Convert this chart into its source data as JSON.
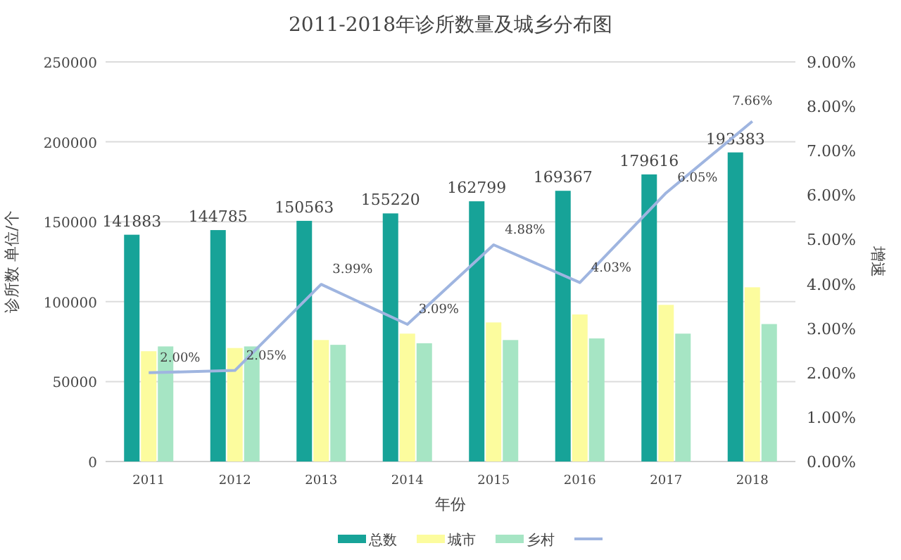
{
  "chart_data": {
    "type": "bar",
    "title": "2011-2018年诊所数量及城乡分布图",
    "xlabel": "年份",
    "ylabel": "诊所数 单位/个",
    "y2label": "增速",
    "categories": [
      "2011",
      "2012",
      "2013",
      "2014",
      "2015",
      "2016",
      "2017",
      "2018"
    ],
    "series": [
      {
        "name": "总数",
        "color": "#17a398",
        "values": [
          141883,
          144785,
          150563,
          155220,
          162799,
          169367,
          179616,
          193383
        ],
        "value_labels": [
          "141883",
          "144785",
          "150563",
          "155220",
          "162799",
          "169367",
          "179616",
          "193383"
        ]
      },
      {
        "name": "城市",
        "color": "#fcfc9e",
        "values": [
          69000,
          71000,
          76000,
          80000,
          87000,
          92000,
          98000,
          109000
        ]
      },
      {
        "name": "乡村",
        "color": "#a6e5c4",
        "values": [
          72000,
          72000,
          73000,
          74000,
          76000,
          77000,
          80000,
          86000
        ]
      },
      {
        "type": "line",
        "axis": "y2",
        "color": "#9fb5e0",
        "values": [
          2.0,
          2.05,
          3.99,
          3.09,
          4.88,
          4.03,
          6.05,
          7.66
        ],
        "value_labels": [
          "2.00%",
          "2.05%",
          "3.99%",
          "3.09%",
          "4.88%",
          "4.03%",
          "6.05%",
          "7.66%"
        ]
      }
    ],
    "ylim": [
      0,
      250000
    ],
    "yticks": [
      0,
      50000,
      100000,
      150000,
      200000,
      250000
    ],
    "y2lim": [
      0,
      9
    ],
    "y2ticks": [
      {
        "value": 0,
        "label": "0.00%"
      },
      {
        "value": 1,
        "label": "1.00%"
      },
      {
        "value": 2,
        "label": "2.00%"
      },
      {
        "value": 3,
        "label": "3.00%"
      },
      {
        "value": 4,
        "label": "4.00%"
      },
      {
        "value": 5,
        "label": "5.00%"
      },
      {
        "value": 6,
        "label": "6.00%"
      },
      {
        "value": 7,
        "label": "7.00%"
      },
      {
        "value": 8,
        "label": "8.00%"
      },
      {
        "value": 9,
        "label": "9.00%"
      }
    ],
    "grid": "y",
    "legend": "bottom"
  }
}
